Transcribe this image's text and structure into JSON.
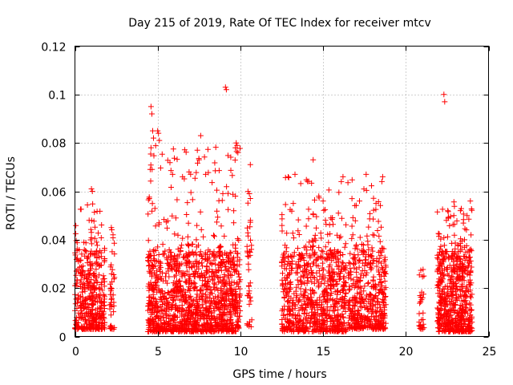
{
  "chart_data": {
    "type": "scatter",
    "title": "Day 215 of 2019, Rate Of TEC Index for receiver mtcv",
    "xlabel": "GPS time / hours",
    "ylabel": "ROTI / TECUs",
    "xlim": [
      0,
      25
    ],
    "ylim": [
      0,
      0.12
    ],
    "x_ticks": [
      0,
      5,
      10,
      15,
      20,
      25
    ],
    "x_tick_labels": [
      "0",
      "5",
      "10",
      "15",
      "20",
      "25"
    ],
    "y_ticks": [
      0,
      0.02,
      0.04,
      0.06,
      0.08,
      0.1,
      0.12
    ],
    "y_tick_labels": [
      "0",
      "0.02",
      "0.04",
      "0.06",
      "0.08",
      "0.1",
      "0.12"
    ],
    "grid": true,
    "marker": "+",
    "color": "#ff0000",
    "series": [
      {
        "name": "ROTI",
        "clusters": [
          {
            "x_range": [
              0.0,
              1.8
            ],
            "y_range": [
              0.003,
              0.035
            ],
            "density": 380
          },
          {
            "x_range": [
              0.0,
              1.8
            ],
            "y_range": [
              0.035,
              0.055
            ],
            "density": 40
          },
          {
            "x_range": [
              2.1,
              2.4
            ],
            "y_range": [
              0.003,
              0.045
            ],
            "density": 40
          },
          {
            "x_range": [
              4.4,
              10.0
            ],
            "y_range": [
              0.002,
              0.035
            ],
            "density": 1200
          },
          {
            "x_range": [
              4.4,
              10.0
            ],
            "y_range": [
              0.035,
              0.08
            ],
            "density": 120
          },
          {
            "x_range": [
              10.4,
              10.7
            ],
            "y_range": [
              0.003,
              0.06
            ],
            "density": 40
          },
          {
            "x_range": [
              12.5,
              16.4
            ],
            "y_range": [
              0.002,
              0.035
            ],
            "density": 700
          },
          {
            "x_range": [
              12.5,
              16.4
            ],
            "y_range": [
              0.035,
              0.067
            ],
            "density": 80
          },
          {
            "x_range": [
              16.5,
              18.8
            ],
            "y_range": [
              0.003,
              0.035
            ],
            "density": 400
          },
          {
            "x_range": [
              16.5,
              18.8
            ],
            "y_range": [
              0.035,
              0.066
            ],
            "density": 50
          },
          {
            "x_range": [
              20.8,
              21.1
            ],
            "y_range": [
              0.003,
              0.028
            ],
            "density": 30
          },
          {
            "x_range": [
              21.9,
              24.0
            ],
            "y_range": [
              0.002,
              0.035
            ],
            "density": 550
          },
          {
            "x_range": [
              21.9,
              24.0
            ],
            "y_range": [
              0.035,
              0.056
            ],
            "density": 60
          }
        ],
        "points": [
          [
            9.1,
            0.103
          ],
          [
            9.15,
            0.102
          ],
          [
            22.3,
            0.1
          ],
          [
            22.35,
            0.097
          ],
          [
            4.6,
            0.095
          ],
          [
            4.65,
            0.092
          ],
          [
            4.7,
            0.085
          ],
          [
            4.75,
            0.082
          ],
          [
            5.0,
            0.085
          ],
          [
            5.05,
            0.084
          ],
          [
            5.1,
            0.081
          ],
          [
            4.6,
            0.078
          ],
          [
            4.55,
            0.069
          ],
          [
            7.6,
            0.083
          ],
          [
            7.4,
            0.077
          ],
          [
            7.5,
            0.073
          ],
          [
            9.75,
            0.08
          ],
          [
            9.8,
            0.079
          ],
          [
            9.7,
            0.078
          ],
          [
            9.85,
            0.076
          ],
          [
            10.6,
            0.071
          ],
          [
            14.4,
            0.073
          ],
          [
            13.3,
            0.067
          ],
          [
            16.2,
            0.066
          ],
          [
            16.1,
            0.064
          ],
          [
            17.6,
            0.067
          ],
          [
            18.6,
            0.066
          ],
          [
            18.55,
            0.064
          ],
          [
            1.0,
            0.061
          ],
          [
            1.05,
            0.06
          ],
          [
            6.9,
            0.068
          ],
          [
            5.9,
            0.067
          ],
          [
            6.5,
            0.066
          ],
          [
            7.9,
            0.067
          ],
          [
            9.7,
            0.058
          ],
          [
            10.6,
            0.057
          ],
          [
            22.9,
            0.05
          ],
          [
            23.9,
            0.056
          ],
          [
            23.3,
            0.052
          ],
          [
            23.7,
            0.05
          ],
          [
            2.2,
            0.045
          ],
          [
            2.3,
            0.042
          ],
          [
            2.25,
            0.035
          ],
          [
            13.2,
            0.055
          ],
          [
            17.2,
            0.056
          ],
          [
            18.2,
            0.055
          ],
          [
            15.0,
            0.056
          ],
          [
            9.6,
            0.047
          ]
        ]
      }
    ]
  }
}
